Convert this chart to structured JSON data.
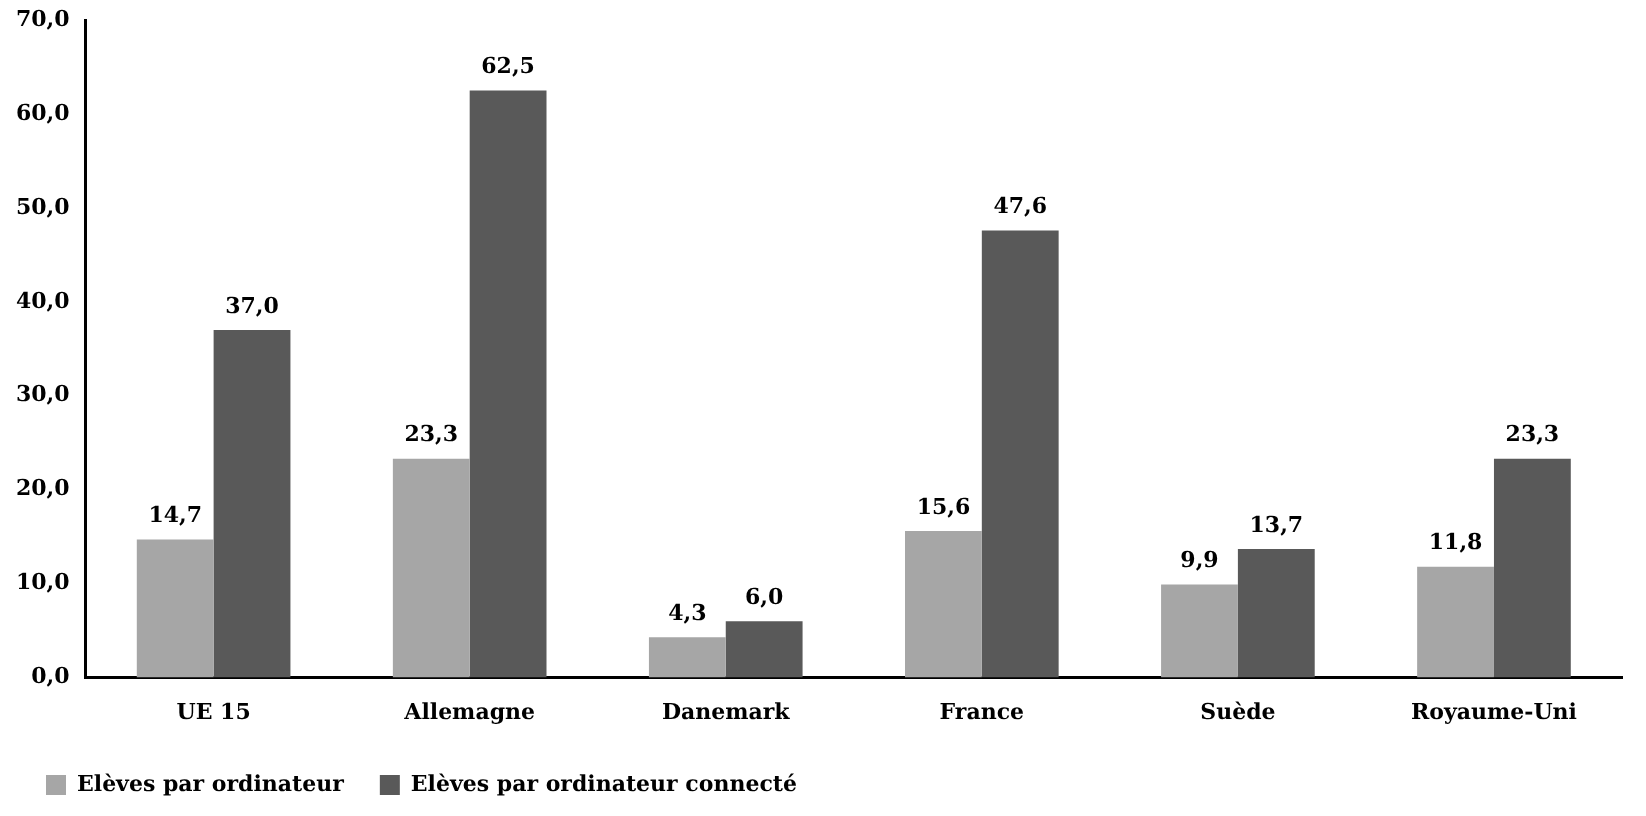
{
  "chart_data": {
    "type": "bar",
    "categories": [
      "UE 15",
      "Allemagne",
      "Danemark",
      "France",
      "Suède",
      "Royaume-Uni"
    ],
    "series": [
      {
        "name": "Elèves par ordinateur",
        "color": "#a6a6a6",
        "values": [
          14.7,
          23.3,
          4.3,
          15.6,
          9.9,
          11.8
        ],
        "value_labels": [
          "14,7",
          "23,3",
          "4,3",
          "15,6",
          "9,9",
          "11,8"
        ]
      },
      {
        "name": "Elèves par ordinateur connecté",
        "color": "#595959",
        "values": [
          37.0,
          62.5,
          6.0,
          47.6,
          13.7,
          23.3
        ],
        "value_labels": [
          "37,0",
          "62,5",
          "6,0",
          "47,6",
          "13,7",
          "23,3"
        ]
      }
    ],
    "ylim": [
      0,
      70
    ],
    "yticks": [
      {
        "value": 0,
        "label": "0,0"
      },
      {
        "value": 10,
        "label": "10,0"
      },
      {
        "value": 20,
        "label": "20,0"
      },
      {
        "value": 30,
        "label": "30,0"
      },
      {
        "value": 40,
        "label": "40,0"
      },
      {
        "value": 50,
        "label": "50,0"
      },
      {
        "value": 60,
        "label": "60,0"
      },
      {
        "value": 70,
        "label": "70,0"
      }
    ],
    "grid": false,
    "legend": "bottom left"
  }
}
